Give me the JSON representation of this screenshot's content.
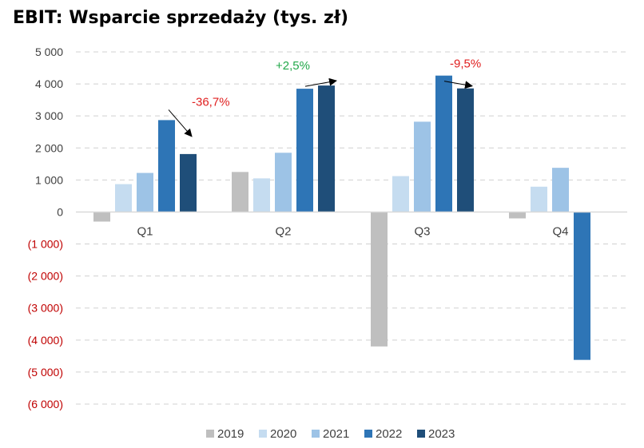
{
  "title": "EBIT: Wsparcie sprzedaży (tys. zł)",
  "chart_data": {
    "type": "bar",
    "title": "EBIT: Wsparcie sprzedaży (tys. zł)",
    "categories": [
      "Q1",
      "Q2",
      "Q3",
      "Q4"
    ],
    "series": [
      {
        "name": "2019",
        "color": "#BFBFBF",
        "values": [
          -300,
          1250,
          -4200,
          -200
        ]
      },
      {
        "name": "2020",
        "color": "#C5DCF0",
        "values": [
          870,
          1050,
          1120,
          790
        ]
      },
      {
        "name": "2021",
        "color": "#9DC3E6",
        "values": [
          1220,
          1850,
          2820,
          1380
        ]
      },
      {
        "name": "2022",
        "color": "#2E75B6",
        "values": [
          2870,
          3850,
          4260,
          -4620
        ]
      },
      {
        "name": "2023",
        "color": "#1F4E79",
        "values": [
          1810,
          3950,
          3860,
          null
        ]
      }
    ],
    "ylim": [
      -6000,
      5000
    ],
    "yticks": [
      5000,
      4000,
      3000,
      2000,
      1000,
      0,
      -1000,
      -2000,
      -3000,
      -4000,
      -5000,
      -6000
    ],
    "ytick_labels": [
      "5 000",
      "4 000",
      "3 000",
      "2 000",
      "1 000",
      "0",
      "(1 000)",
      "(2 000)",
      "(3 000)",
      "(4 000)",
      "(5 000)",
      "(6 000)"
    ],
    "negative_tick_color": "#C00000",
    "grid": "dashed horizontal",
    "legend": "bottom",
    "annotations": [
      {
        "text": "-36,7%",
        "category": "Q1",
        "color": "#E02020",
        "direction": "down"
      },
      {
        "text": "+2,5%",
        "category": "Q2",
        "color": "#22A84A",
        "direction": "up"
      },
      {
        "text": "-9,5%",
        "category": "Q3",
        "color": "#E02020",
        "direction": "down"
      }
    ]
  }
}
